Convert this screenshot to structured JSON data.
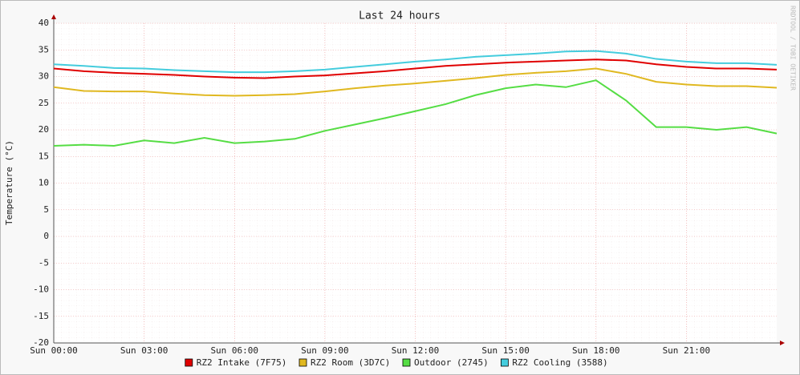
{
  "chart_data": {
    "type": "line",
    "title": "Last 24 hours",
    "y_label": "Temperature (°C)",
    "watermark": "RRDTOOL / TOBI OETIKER",
    "x": [
      0,
      1,
      2,
      3,
      4,
      5,
      6,
      7,
      8,
      9,
      10,
      11,
      12,
      13,
      14,
      15,
      16,
      17,
      18,
      19,
      20,
      21,
      22,
      23,
      24
    ],
    "xlim": [
      0,
      24
    ],
    "xticks": [
      {
        "value": 0,
        "label": "Sun 00:00"
      },
      {
        "value": 3,
        "label": "Sun 03:00"
      },
      {
        "value": 6,
        "label": "Sun 06:00"
      },
      {
        "value": 9,
        "label": "Sun 09:00"
      },
      {
        "value": 12,
        "label": "Sun 12:00"
      },
      {
        "value": 15,
        "label": "Sun 15:00"
      },
      {
        "value": 18,
        "label": "Sun 18:00"
      },
      {
        "value": 21,
        "label": "Sun 21:00"
      }
    ],
    "ylim": [
      -20,
      40
    ],
    "yticks": [
      -20,
      -15,
      -10,
      -5,
      0,
      5,
      10,
      15,
      20,
      25,
      30,
      35,
      40
    ],
    "grid": true,
    "series": [
      {
        "name": "RZ2 Intake (7F75)",
        "color": "#e00000",
        "values": [
          31.5,
          31,
          30.7,
          30.5,
          30.3,
          30,
          29.8,
          29.7,
          30,
          30.2,
          30.6,
          31,
          31.5,
          32,
          32.3,
          32.6,
          32.8,
          33,
          33.2,
          33,
          32.3,
          31.8,
          31.5,
          31.5,
          31.3
        ]
      },
      {
        "name": "RZ2 Room (3D7C)",
        "color": "#e0b820",
        "values": [
          28,
          27.3,
          27.2,
          27.2,
          26.8,
          26.5,
          26.4,
          26.5,
          26.7,
          27.2,
          27.8,
          28.3,
          28.7,
          29.2,
          29.7,
          30.3,
          30.7,
          31,
          31.5,
          30.5,
          29,
          28.5,
          28.2,
          28.2,
          27.9
        ]
      },
      {
        "name": "Outdoor (2745)",
        "color": "#55dd44",
        "values": [
          17,
          17.2,
          17,
          18,
          17.5,
          18.5,
          17.5,
          17.8,
          18.3,
          19.8,
          21,
          22.2,
          23.5,
          24.8,
          26.5,
          27.8,
          28.5,
          28,
          29.3,
          25.5,
          20.5,
          20.5,
          20,
          20.5,
          19.3
        ]
      },
      {
        "name": "RZ2 Cooling (3588)",
        "color": "#44ccdd",
        "values": [
          32.3,
          32,
          31.6,
          31.5,
          31.2,
          31,
          30.8,
          30.8,
          31,
          31.3,
          31.8,
          32.3,
          32.8,
          33.2,
          33.7,
          34,
          34.3,
          34.7,
          34.8,
          34.3,
          33.3,
          32.8,
          32.5,
          32.5,
          32.2
        ]
      }
    ]
  }
}
